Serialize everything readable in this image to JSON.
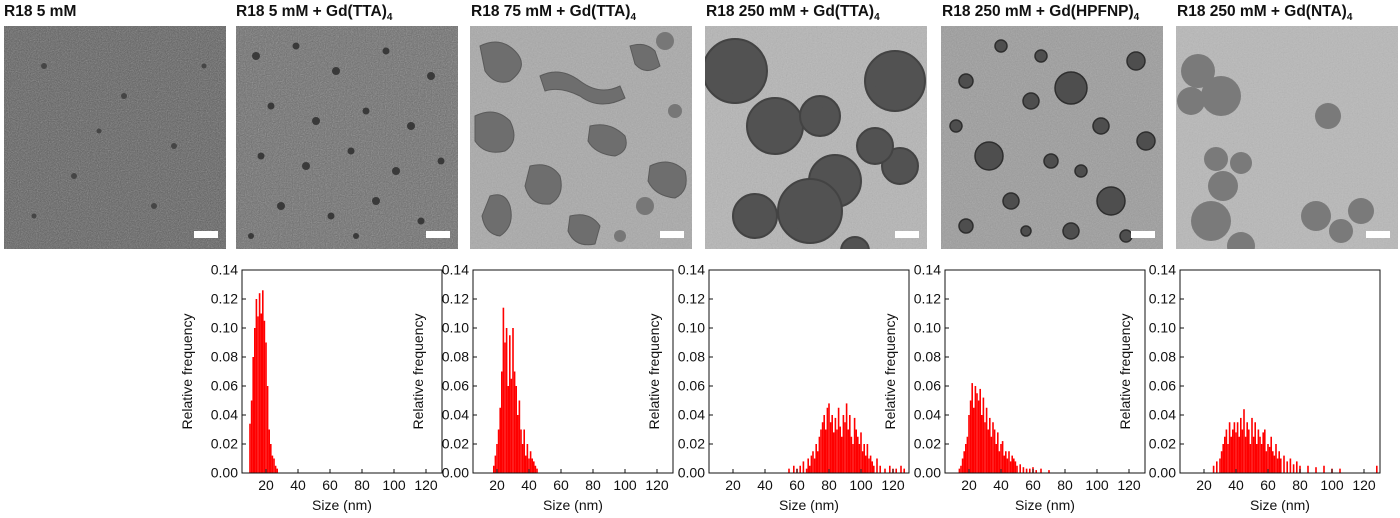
{
  "panels": [
    {
      "title_main": "R18 5 mM",
      "title_sub": ""
    },
    {
      "title_main": "R18 5 mM + Gd(TTA)",
      "title_sub": "4"
    },
    {
      "title_main": "R18 75 mM + Gd(TTA)",
      "title_sub": "4"
    },
    {
      "title_main": "R18 250 mM + Gd(TTA)",
      "title_sub": "4"
    },
    {
      "title_main": "R18 250 mM + Gd(HPFNP)",
      "title_sub": "4"
    },
    {
      "title_main": "R18 250 mM + Gd(NTA)",
      "title_sub": "4"
    }
  ],
  "colors": {
    "bar": "#ff0000",
    "axis": "#111111"
  },
  "chart_data": [
    {
      "type": "bar",
      "panel": "R18 5 mM + Gd(TTA)4",
      "xlabel": "Size (nm)",
      "ylabel": "Relative frequency",
      "xlim": [
        5,
        130
      ],
      "ylim": [
        0,
        0.14
      ],
      "xticks": [
        20,
        40,
        60,
        80,
        100,
        120
      ],
      "yticks": [
        "0.00",
        "0.02",
        "0.04",
        "0.06",
        "0.08",
        "0.10",
        "0.12",
        "0.14"
      ],
      "x": [
        10,
        11,
        12,
        13,
        14,
        15,
        16,
        17,
        18,
        19,
        20,
        21,
        22,
        23,
        24,
        25,
        26,
        27
      ],
      "values": [
        0.034,
        0.05,
        0.08,
        0.1,
        0.12,
        0.108,
        0.124,
        0.11,
        0.126,
        0.105,
        0.09,
        0.06,
        0.03,
        0.02,
        0.012,
        0.01,
        0.005,
        0.003
      ]
    },
    {
      "type": "bar",
      "panel": "R18 75 mM + Gd(TTA)4",
      "xlabel": "Size (nm)",
      "ylabel": "Relative frequency",
      "xlim": [
        5,
        130
      ],
      "ylim": [
        0,
        0.14
      ],
      "xticks": [
        20,
        40,
        60,
        80,
        100,
        120
      ],
      "yticks": [
        "0.00",
        "0.02",
        "0.04",
        "0.06",
        "0.08",
        "0.10",
        "0.12",
        "0.14"
      ],
      "x": [
        18,
        19,
        20,
        21,
        22,
        23,
        24,
        25,
        26,
        27,
        28,
        29,
        30,
        31,
        32,
        33,
        34,
        35,
        36,
        37,
        38,
        39,
        40,
        41,
        42,
        43,
        44,
        45
      ],
      "values": [
        0.005,
        0.012,
        0.02,
        0.03,
        0.045,
        0.07,
        0.114,
        0.09,
        0.1,
        0.06,
        0.095,
        0.065,
        0.1,
        0.07,
        0.06,
        0.04,
        0.05,
        0.03,
        0.02,
        0.03,
        0.012,
        0.02,
        0.01,
        0.015,
        0.01,
        0.008,
        0.005,
        0.003
      ]
    },
    {
      "type": "bar",
      "panel": "R18 250 mM + Gd(TTA)4",
      "xlabel": "Size (nm)",
      "ylabel": "Relative frequency",
      "xlim": [
        5,
        130
      ],
      "ylim": [
        0,
        0.14
      ],
      "xticks": [
        20,
        40,
        60,
        80,
        100,
        120
      ],
      "yticks": [
        "0.00",
        "0.02",
        "0.04",
        "0.06",
        "0.08",
        "0.10",
        "0.12",
        "0.14"
      ],
      "x": [
        55,
        58,
        60,
        62,
        64,
        66,
        67,
        68,
        69,
        70,
        71,
        72,
        73,
        74,
        75,
        76,
        77,
        78,
        79,
        80,
        81,
        82,
        83,
        84,
        85,
        86,
        87,
        88,
        89,
        90,
        91,
        92,
        93,
        94,
        95,
        96,
        97,
        98,
        99,
        100,
        101,
        102,
        103,
        104,
        105,
        106,
        107,
        108,
        110,
        112,
        115,
        118,
        120,
        122,
        125,
        127
      ],
      "values": [
        0.003,
        0.005,
        0.003,
        0.005,
        0.008,
        0.003,
        0.01,
        0.005,
        0.012,
        0.015,
        0.01,
        0.02,
        0.015,
        0.025,
        0.03,
        0.035,
        0.04,
        0.03,
        0.045,
        0.048,
        0.035,
        0.04,
        0.028,
        0.038,
        0.03,
        0.045,
        0.032,
        0.025,
        0.04,
        0.035,
        0.048,
        0.03,
        0.04,
        0.025,
        0.02,
        0.038,
        0.03,
        0.025,
        0.02,
        0.028,
        0.015,
        0.02,
        0.012,
        0.02,
        0.01,
        0.012,
        0.008,
        0.005,
        0.01,
        0.005,
        0.003,
        0.005,
        0.003,
        0.003,
        0.005,
        0.003
      ]
    },
    {
      "type": "bar",
      "panel": "R18 250 mM + Gd(HPFNP)4",
      "xlabel": "Size (nm)",
      "ylabel": "Relative frequency",
      "xlim": [
        5,
        130
      ],
      "ylim": [
        0,
        0.14
      ],
      "xticks": [
        20,
        40,
        60,
        80,
        100,
        120
      ],
      "yticks": [
        "0.00",
        "0.02",
        "0.04",
        "0.06",
        "0.08",
        "0.10",
        "0.12",
        "0.14"
      ],
      "x": [
        14,
        15,
        16,
        17,
        18,
        19,
        20,
        21,
        22,
        23,
        24,
        25,
        26,
        27,
        28,
        29,
        30,
        31,
        32,
        33,
        34,
        35,
        36,
        37,
        38,
        39,
        40,
        41,
        42,
        43,
        44,
        45,
        46,
        47,
        48,
        49,
        50,
        52,
        54,
        56,
        58,
        60,
        62,
        65,
        70
      ],
      "values": [
        0.003,
        0.005,
        0.01,
        0.015,
        0.02,
        0.025,
        0.04,
        0.05,
        0.062,
        0.045,
        0.06,
        0.055,
        0.05,
        0.058,
        0.04,
        0.052,
        0.035,
        0.045,
        0.03,
        0.038,
        0.025,
        0.035,
        0.03,
        0.02,
        0.028,
        0.015,
        0.02,
        0.022,
        0.012,
        0.015,
        0.01,
        0.015,
        0.008,
        0.012,
        0.01,
        0.008,
        0.005,
        0.006,
        0.004,
        0.003,
        0.003,
        0.004,
        0.002,
        0.003,
        0.002
      ]
    },
    {
      "type": "bar",
      "panel": "R18 250 mM + Gd(NTA)4",
      "xlabel": "Size (nm)",
      "ylabel": "Relative frequency",
      "xlim": [
        5,
        130
      ],
      "ylim": [
        0,
        0.14
      ],
      "xticks": [
        20,
        40,
        60,
        80,
        100,
        120
      ],
      "yticks": [
        "0.00",
        "0.02",
        "0.04",
        "0.06",
        "0.08",
        "0.10",
        "0.12",
        "0.14"
      ],
      "x": [
        26,
        28,
        30,
        31,
        32,
        33,
        34,
        35,
        36,
        37,
        38,
        39,
        40,
        41,
        42,
        43,
        44,
        45,
        46,
        47,
        48,
        49,
        50,
        51,
        52,
        53,
        54,
        55,
        56,
        57,
        58,
        59,
        60,
        61,
        62,
        63,
        64,
        65,
        66,
        67,
        68,
        70,
        72,
        74,
        76,
        78,
        80,
        85,
        90,
        95,
        100,
        105,
        128
      ],
      "values": [
        0.005,
        0.008,
        0.01,
        0.015,
        0.02,
        0.025,
        0.03,
        0.02,
        0.035,
        0.025,
        0.03,
        0.035,
        0.028,
        0.035,
        0.025,
        0.038,
        0.03,
        0.044,
        0.025,
        0.035,
        0.03,
        0.02,
        0.038,
        0.025,
        0.035,
        0.02,
        0.03,
        0.025,
        0.02,
        0.028,
        0.03,
        0.015,
        0.02,
        0.018,
        0.025,
        0.015,
        0.012,
        0.02,
        0.01,
        0.015,
        0.01,
        0.012,
        0.008,
        0.01,
        0.006,
        0.008,
        0.005,
        0.005,
        0.004,
        0.005,
        0.003,
        0.003,
        0.005
      ]
    }
  ]
}
